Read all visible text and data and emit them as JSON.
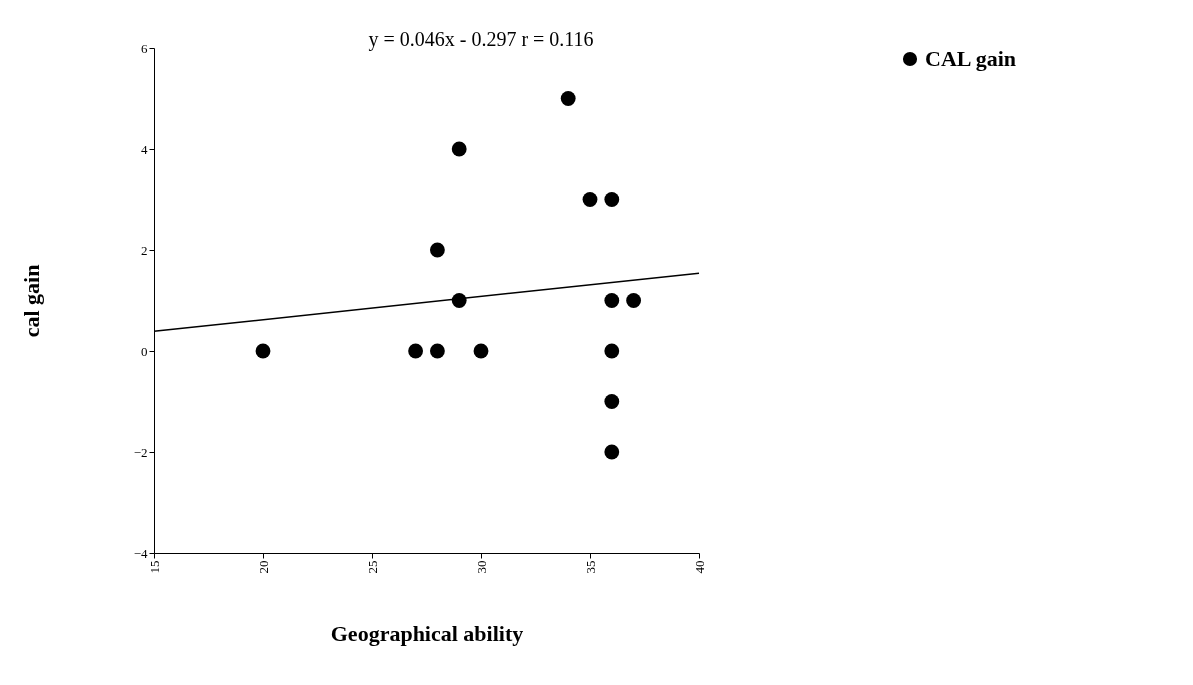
{
  "chart_data": {
    "type": "scatter",
    "xlabel": "Geographical ability",
    "ylabel": "cal gain",
    "xlim": [
      15,
      40
    ],
    "xticks": [
      15,
      20,
      25,
      30,
      35,
      40
    ],
    "ylim": [
      -4,
      6
    ],
    "yticks": [
      -4,
      -2,
      0,
      2,
      4,
      6
    ],
    "grid": false,
    "legend": "right",
    "annotations": [
      "y = 0.046x - 0.297   r = 0.116"
    ],
    "series": [
      {
        "name": "CAL gain",
        "marker": "circle",
        "color": "#000000",
        "x": [
          20,
          27,
          28,
          28,
          29,
          29,
          30,
          34,
          35,
          36,
          36,
          37,
          36,
          36,
          36
        ],
        "values": [
          0,
          0,
          0,
          2,
          4,
          1,
          0,
          5,
          3,
          3,
          1,
          1,
          0,
          -1,
          -2
        ]
      },
      {
        "type": "line",
        "color": "#000000",
        "line_style": "solid",
        "x": [
          15,
          40
        ],
        "values": [
          0.39,
          1.54
        ]
      }
    ]
  }
}
